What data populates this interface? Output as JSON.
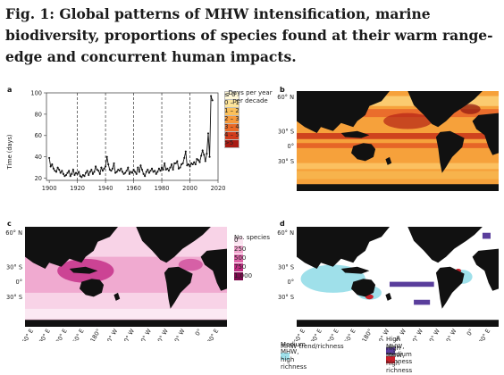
{
  "title": "Fig. 1: Global patterns of MHW intensification, marine biodiversity, proportions of species found at their warm range-edge and concurrent human impacts.",
  "panels": {
    "a": {
      "label": "a",
      "ylabel": "Time (days)",
      "yticks": [
        "20",
        "40",
        "60",
        "80",
        "100"
      ],
      "xticks": [
        "1900",
        "1920",
        "1940",
        "1960",
        "1980",
        "2000",
        "2020"
      ],
      "legend_title": "Days per year per decade",
      "legend_items": [
        "≤ 0",
        "0 – 1",
        "1 – 2",
        "2 – 3",
        "3 – 4",
        "4 – 5",
        ">5"
      ],
      "legend_colors": [
        "#fff7d6",
        "#fde49a",
        "#fbc05a",
        "#f79a3c",
        "#ea6a27",
        "#d13b1b",
        "#a81a12"
      ]
    },
    "b": {
      "label": "b"
    },
    "c": {
      "label": "c",
      "legend_title": "No. species",
      "legend_items": [
        "0",
        "250",
        "500",
        "750",
        "1,000"
      ],
      "legend_colors": [
        "#fbe3f0",
        "#f3a7cf",
        "#e063a8",
        "#c02c82",
        "#7c0a4d"
      ]
    },
    "d": {
      "label": "d",
      "legend_title": "MHW trend/richness",
      "legend_items": [
        "Medium MHW, high richness",
        "High MHW, medium richness",
        "High MHW, high richness"
      ],
      "legend_colors": [
        "#9fe0ea",
        "#5a3e9c",
        "#c8202a"
      ]
    }
  },
  "map_lat_labels": [
    "60° N",
    "30° S",
    "0°",
    "30° S"
  ],
  "map_lon_labels": [
    "60° E",
    "90° E",
    "120° E",
    "150° E",
    "180°",
    "150° W",
    "120° W",
    "90° W",
    "60° W",
    "30° W",
    "0°",
    "30° E"
  ],
  "chart_data": [
    {
      "type": "line",
      "panel": "a",
      "x": [
        1900,
        1901,
        1902,
        1903,
        1904,
        1905,
        1906,
        1907,
        1908,
        1909,
        1910,
        1911,
        1912,
        1913,
        1914,
        1915,
        1916,
        1917,
        1918,
        1919,
        1920,
        1921,
        1922,
        1923,
        1924,
        1925,
        1926,
        1927,
        1928,
        1929,
        1930,
        1931,
        1932,
        1933,
        1934,
        1935,
        1936,
        1937,
        1938,
        1939,
        1940,
        1941,
        1942,
        1943,
        1944,
        1945,
        1946,
        1947,
        1948,
        1949,
        1950,
        1951,
        1952,
        1953,
        1954,
        1955,
        1956,
        1957,
        1958,
        1959,
        1960,
        1961,
        1962,
        1963,
        1964,
        1965,
        1966,
        1967,
        1968,
        1969,
        1970,
        1971,
        1972,
        1973,
        1974,
        1975,
        1976,
        1977,
        1978,
        1979,
        1980,
        1981,
        1982,
        1983,
        1984,
        1985,
        1986,
        1987,
        1988,
        1989,
        1990,
        1991,
        1992,
        1993,
        1994,
        1995,
        1996,
        1997,
        1998,
        1999,
        2000,
        2001,
        2002,
        2003,
        2004,
        2005,
        2006,
        2007,
        2008,
        2009,
        2010,
        2011,
        2012,
        2013,
        2014,
        2015,
        2016
      ],
      "y": [
        39,
        31,
        33,
        29,
        27,
        26,
        30,
        28,
        25,
        27,
        24,
        22,
        23,
        25,
        27,
        22,
        24,
        28,
        23,
        25,
        24,
        26,
        22,
        21,
        23,
        22,
        25,
        27,
        23,
        26,
        28,
        24,
        26,
        31,
        28,
        27,
        24,
        30,
        27,
        29,
        31,
        40,
        33,
        28,
        27,
        29,
        34,
        25,
        26,
        28,
        27,
        29,
        26,
        24,
        25,
        27,
        30,
        24,
        26,
        25,
        28,
        26,
        24,
        30,
        26,
        32,
        28,
        24,
        22,
        26,
        28,
        25,
        27,
        29,
        26,
        27,
        24,
        26,
        29,
        27,
        30,
        28,
        34,
        28,
        29,
        27,
        30,
        33,
        28,
        34,
        34,
        36,
        29,
        30,
        33,
        34,
        39,
        45,
        32,
        33,
        31,
        34,
        33,
        35,
        33,
        38,
        37,
        35,
        41,
        46,
        42,
        36,
        43,
        62,
        40,
        97,
        93
      ],
      "xlim": [
        1898,
        2020
      ],
      "ylim": [
        18,
        100
      ]
    }
  ]
}
